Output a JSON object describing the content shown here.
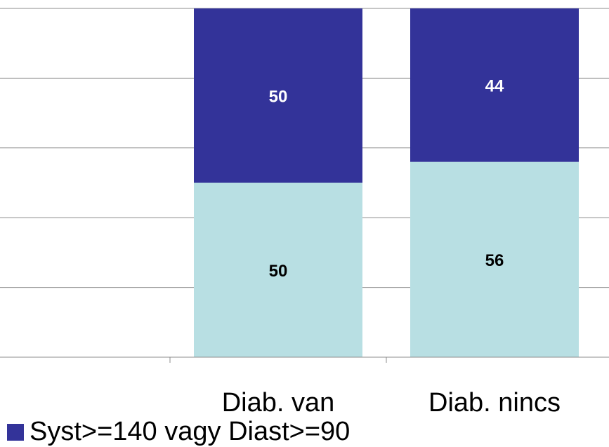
{
  "chart_data": {
    "type": "bar",
    "stacked": true,
    "percent": true,
    "categories": [
      "",
      "Diab. van",
      "Diab. nincs"
    ],
    "series": [
      {
        "name": "",
        "values": [
          null,
          50,
          56
        ],
        "color": "#b8dfe3"
      },
      {
        "name": "Syst>=140 vagy Diast>=90",
        "values": [
          null,
          50,
          44
        ],
        "color": "#333399"
      }
    ],
    "ylim": [
      0,
      100
    ],
    "grid": true,
    "legend_position": "bottom-left"
  }
}
